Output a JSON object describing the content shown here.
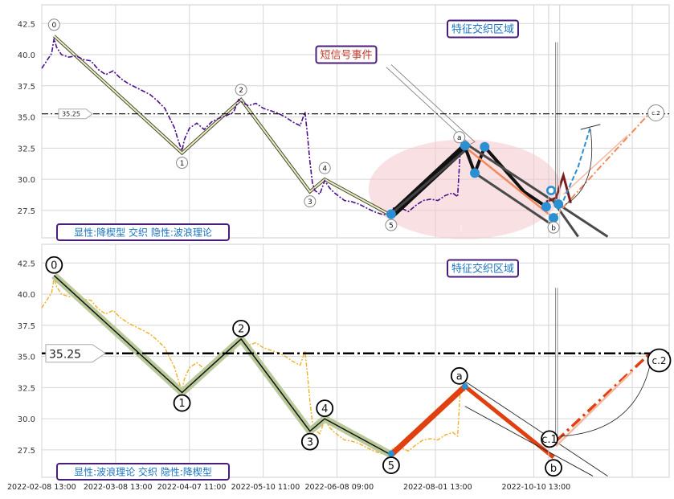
{
  "chart_data": [
    {
      "type": "line",
      "panel": "top",
      "ylim": [
        25.3,
        44.0
      ],
      "yticks": [
        27.5,
        30.0,
        32.5,
        35.0,
        37.5,
        40.0,
        42.5
      ],
      "ytick_labels": [
        "27.5",
        "30.0",
        "32.5",
        "35.0",
        "37.5",
        "40.0",
        "42.5"
      ],
      "grid": true,
      "reference_line": {
        "value": 35.25,
        "label": "35.25"
      },
      "price_series": [
        [
          0,
          38.9
        ],
        [
          2,
          39.5
        ],
        [
          4,
          40.1
        ],
        [
          5,
          41.3
        ],
        [
          6,
          40.6
        ],
        [
          8,
          40.0
        ],
        [
          11,
          39.8
        ],
        [
          14,
          39.9
        ],
        [
          17,
          39.6
        ],
        [
          20,
          39.5
        ],
        [
          23,
          38.8
        ],
        [
          26,
          38.4
        ],
        [
          29,
          38.7
        ],
        [
          32,
          38.1
        ],
        [
          35,
          37.7
        ],
        [
          38,
          37.4
        ],
        [
          41,
          37.1
        ],
        [
          44,
          36.8
        ],
        [
          47,
          36.3
        ],
        [
          50,
          35.7
        ],
        [
          52,
          34.9
        ],
        [
          54,
          34.1
        ],
        [
          55,
          33.4
        ],
        [
          56,
          32.8
        ],
        [
          57,
          32.3
        ],
        [
          58,
          33.2
        ],
        [
          60,
          34.1
        ],
        [
          63,
          34.5
        ],
        [
          66,
          34.0
        ],
        [
          69,
          34.6
        ],
        [
          72,
          34.9
        ],
        [
          75,
          35.1
        ],
        [
          78,
          35.4
        ],
        [
          80,
          36.4
        ],
        [
          82,
          36.1
        ],
        [
          84,
          35.9
        ],
        [
          87,
          36.1
        ],
        [
          90,
          35.7
        ],
        [
          93,
          35.5
        ],
        [
          96,
          35.3
        ],
        [
          99,
          35.0
        ],
        [
          102,
          34.6
        ],
        [
          105,
          34.3
        ],
        [
          107,
          35.4
        ],
        [
          108,
          33.5
        ],
        [
          109,
          31.4
        ],
        [
          110,
          29.7
        ],
        [
          111,
          29.1
        ],
        [
          113,
          28.8
        ],
        [
          115,
          29.9
        ],
        [
          117,
          29.3
        ],
        [
          119,
          28.9
        ],
        [
          121,
          28.6
        ],
        [
          123,
          28.3
        ],
        [
          126,
          28.2
        ],
        [
          129,
          28.0
        ],
        [
          132,
          27.7
        ],
        [
          135,
          27.4
        ],
        [
          138,
          27.2
        ],
        [
          141,
          27.1
        ],
        [
          143,
          27.7
        ],
        [
          146,
          27.7
        ],
        [
          149,
          27.4
        ],
        [
          152,
          27.9
        ],
        [
          155,
          28.3
        ],
        [
          158,
          28.4
        ],
        [
          161,
          28.3
        ],
        [
          164,
          28.7
        ],
        [
          167,
          28.9
        ],
        [
          169,
          28.6
        ],
        [
          170,
          32.0
        ],
        [
          171,
          32.7
        ],
        [
          172,
          32.2
        ]
      ],
      "wave_points": [
        {
          "label": "0",
          "x": 5,
          "y": 41.5
        },
        {
          "label": "1",
          "x": 57,
          "y": 32.1
        },
        {
          "label": "2",
          "x": 81,
          "y": 36.4
        },
        {
          "label": "3",
          "x": 109,
          "y": 29.0
        },
        {
          "label": "4",
          "x": 115,
          "y": 30.0
        },
        {
          "label": "5",
          "x": 142,
          "y": 27.1
        },
        {
          "label": "a",
          "x": 172,
          "y": 32.6
        },
        {
          "label": "b",
          "x": 208,
          "y": 26.9
        },
        {
          "label": "c.2",
          "x": 247,
          "y": 35.2
        }
      ],
      "blue_points": [
        {
          "x": 142,
          "y": 27.2
        },
        {
          "x": 172,
          "y": 32.7
        },
        {
          "x": 176,
          "y": 30.5
        },
        {
          "x": 180,
          "y": 32.6
        },
        {
          "x": 205,
          "y": 27.8
        },
        {
          "x": 208,
          "y": 26.9
        },
        {
          "x": 207,
          "y": 29.1
        },
        {
          "x": 210,
          "y": 28.0
        }
      ],
      "annotations": [
        {
          "text": "特征交织区域",
          "color": "#1a73c0"
        },
        {
          "text": "短信号事件",
          "color": "#c0392b"
        }
      ],
      "legend": "显性:降楔型 交织 隐性:波浪理论"
    },
    {
      "type": "line",
      "panel": "bottom",
      "ylim": [
        25.3,
        44.0
      ],
      "yticks": [
        27.5,
        30.0,
        32.5,
        35.0,
        37.5,
        40.0,
        42.5
      ],
      "ytick_labels": [
        "27.5",
        "30.0",
        "32.5",
        "35.0",
        "37.5",
        "40.0",
        "42.5"
      ],
      "xtick_labels": [
        "2022-02-08 13:00",
        "2022-03-08 13:00",
        "2022-04-07 11:00",
        "2022-05-10 11:00",
        "2022-06-08 09:00",
        "2022-08-01 13:00",
        "2022-10-10 13:00"
      ],
      "grid": true,
      "reference_line": {
        "value": 35.25,
        "label": "35.25"
      },
      "wave_points": [
        {
          "label": "0",
          "x": 5,
          "y": 41.5
        },
        {
          "label": "1",
          "x": 57,
          "y": 32.1
        },
        {
          "label": "2",
          "x": 81,
          "y": 36.4
        },
        {
          "label": "3",
          "x": 109,
          "y": 29.0
        },
        {
          "label": "4",
          "x": 115,
          "y": 30.0
        },
        {
          "label": "5",
          "x": 142,
          "y": 27.1
        },
        {
          "label": "a",
          "x": 172,
          "y": 32.6
        },
        {
          "label": "c.1",
          "x": 207,
          "y": 28.5
        },
        {
          "label": "b",
          "x": 208,
          "y": 26.9
        },
        {
          "label": "c.2",
          "x": 247,
          "y": 35.2
        }
      ],
      "annotations": [
        {
          "text": "特征交织区域",
          "color": "#1a73c0"
        }
      ],
      "legend": "显性:波浪理论 交织 隐性:降楔型"
    }
  ]
}
